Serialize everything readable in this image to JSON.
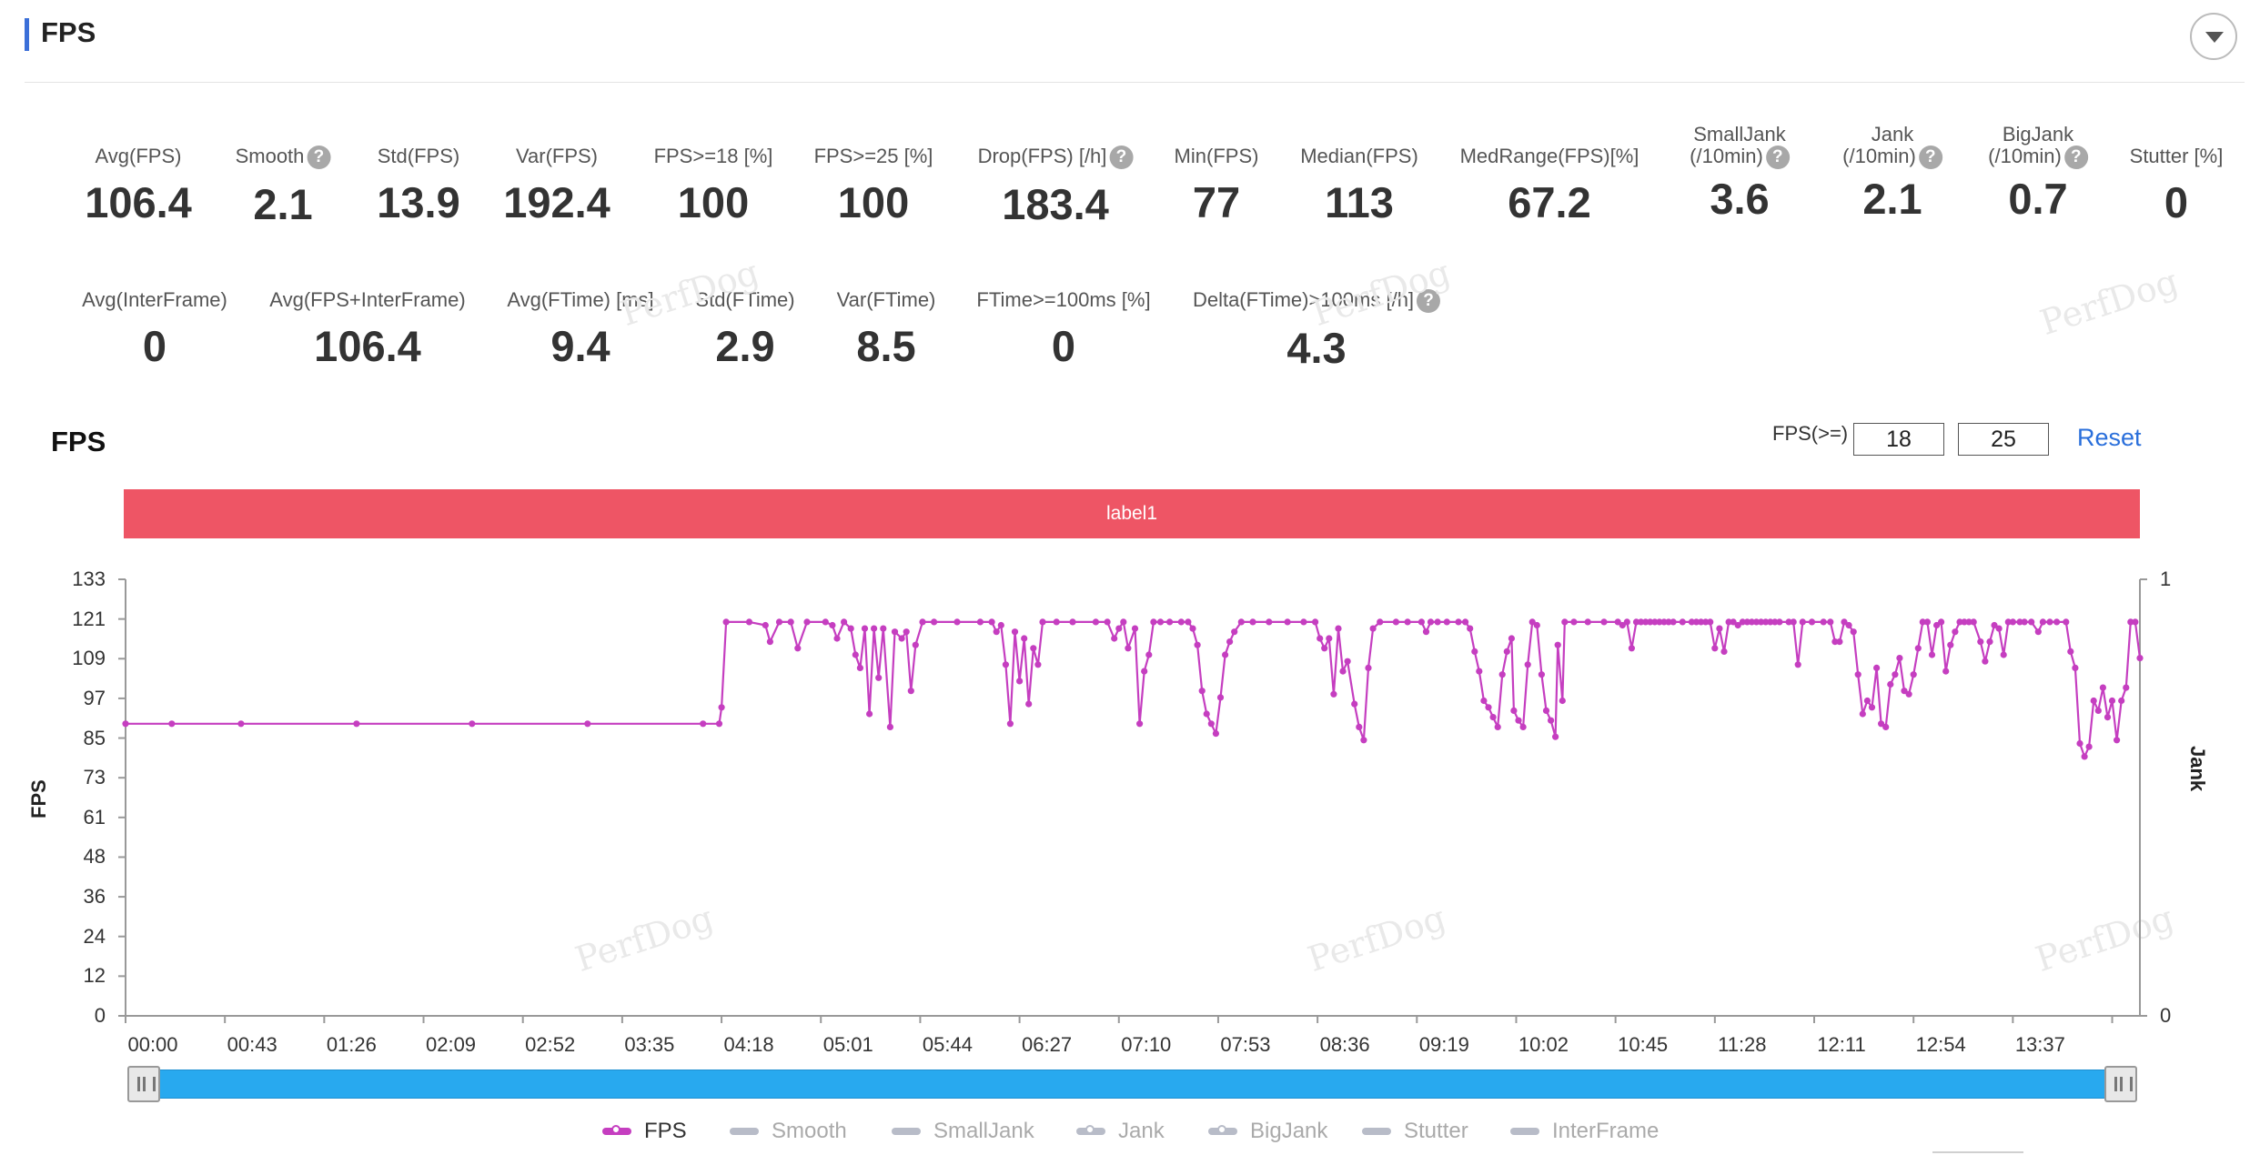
{
  "header": {
    "title": "FPS"
  },
  "metrics_row1": [
    {
      "label": "Avg(FPS)",
      "value": "106.4",
      "help": false
    },
    {
      "label": "Smooth",
      "value": "2.1",
      "help": true
    },
    {
      "label": "Std(FPS)",
      "value": "13.9",
      "help": false
    },
    {
      "label": "Var(FPS)",
      "value": "192.4",
      "help": false
    },
    {
      "label": "FPS>=18 [%]",
      "value": "100",
      "help": false
    },
    {
      "label": "FPS>=25 [%]",
      "value": "100",
      "help": false
    },
    {
      "label": "Drop(FPS) [/h]",
      "value": "183.4",
      "help": true
    },
    {
      "label": "Min(FPS)",
      "value": "77",
      "help": false
    },
    {
      "label": "Median(FPS)",
      "value": "113",
      "help": false
    },
    {
      "label": "MedRange(FPS)[%]",
      "value": "67.2",
      "help": false
    },
    {
      "label": "SmallJank",
      "label2": "(/10min)",
      "value": "3.6",
      "help": true
    },
    {
      "label": "Jank",
      "label2": "(/10min)",
      "value": "2.1",
      "help": true
    },
    {
      "label": "BigJank",
      "label2": "(/10min)",
      "value": "0.7",
      "help": true
    },
    {
      "label": "Stutter [%]",
      "value": "0",
      "help": false
    }
  ],
  "metrics_row2": [
    {
      "label": "Avg(InterFrame)",
      "value": "0",
      "help": false
    },
    {
      "label": "Avg(FPS+InterFrame)",
      "value": "106.4",
      "help": false
    },
    {
      "label": "Avg(FTime) [ms]",
      "value": "9.4",
      "help": false
    },
    {
      "label": "Std(FTime)",
      "value": "2.9",
      "help": false
    },
    {
      "label": "Var(FTime)",
      "value": "8.5",
      "help": false
    },
    {
      "label": "FTime>=100ms [%]",
      "value": "0",
      "help": false
    },
    {
      "label": "Delta(FTime)>100ms [/h]",
      "value": "4.3",
      "help": true
    }
  ],
  "help_glyph": "?",
  "watermark": "PerfDog",
  "chart_panel": {
    "title": "FPS",
    "threshold_label": "FPS(>=)",
    "threshold_low": "18",
    "threshold_high": "25",
    "reset_label": "Reset",
    "band_label": "label1",
    "band_color": "#ee5565"
  },
  "legend": [
    {
      "name": "FPS",
      "color": "#c53ec0",
      "active": true,
      "marker": true
    },
    {
      "name": "Smooth",
      "color": "#b8bcc8",
      "active": false,
      "marker": false
    },
    {
      "name": "SmallJank",
      "color": "#b8bcc8",
      "active": false,
      "marker": false
    },
    {
      "name": "Jank",
      "color": "#b8bcc8",
      "active": false,
      "marker": true
    },
    {
      "name": "BigJank",
      "color": "#b8bcc8",
      "active": false,
      "marker": true
    },
    {
      "name": "Stutter",
      "color": "#b8bcc8",
      "active": false,
      "marker": false
    },
    {
      "name": "InterFrame",
      "color": "#b8bcc8",
      "active": false,
      "marker": false
    }
  ],
  "chart_data": {
    "type": "line",
    "ylabel": "FPS",
    "y2label": "Jank",
    "ylim": [
      0,
      133
    ],
    "y_ticks": [
      "133",
      "121",
      "109",
      "97",
      "85",
      "73",
      "61",
      "48",
      "36",
      "24",
      "12",
      "0"
    ],
    "y2_ticks": [
      "1",
      "0"
    ],
    "x_ticks": [
      "00:00",
      "00:43",
      "01:26",
      "02:09",
      "02:52",
      "03:35",
      "04:18",
      "05:01",
      "05:44",
      "06:27",
      "07:10",
      "07:53",
      "08:36",
      "09:19",
      "10:02",
      "10:45",
      "11:28",
      "12:11",
      "12:54",
      "13:37"
    ],
    "x_span_seconds": 872,
    "series": [
      {
        "name": "FPS",
        "color": "#c53ec0",
        "points": [
          [
            0,
            89
          ],
          [
            20,
            89
          ],
          [
            50,
            89
          ],
          [
            100,
            89
          ],
          [
            150,
            89
          ],
          [
            200,
            89
          ],
          [
            250,
            89
          ],
          [
            257,
            89
          ],
          [
            258,
            94
          ],
          [
            260,
            120
          ],
          [
            270,
            120
          ],
          [
            277,
            119
          ],
          [
            279,
            114
          ],
          [
            283,
            120
          ],
          [
            288,
            120
          ],
          [
            291,
            112
          ],
          [
            295,
            120
          ],
          [
            303,
            120
          ],
          [
            306,
            119
          ],
          [
            308,
            115
          ],
          [
            311,
            120
          ],
          [
            314,
            118
          ],
          [
            316,
            110
          ],
          [
            318,
            106
          ],
          [
            320,
            118
          ],
          [
            322,
            92
          ],
          [
            324,
            118
          ],
          [
            326,
            103
          ],
          [
            328,
            118
          ],
          [
            331,
            88
          ],
          [
            333,
            117
          ],
          [
            336,
            115
          ],
          [
            338,
            117
          ],
          [
            340,
            99
          ],
          [
            342,
            113
          ],
          [
            345,
            120
          ],
          [
            350,
            120
          ],
          [
            360,
            120
          ],
          [
            370,
            120
          ],
          [
            375,
            120
          ],
          [
            377,
            117
          ],
          [
            379,
            119
          ],
          [
            381,
            107
          ],
          [
            383,
            89
          ],
          [
            385,
            117
          ],
          [
            387,
            102
          ],
          [
            389,
            115
          ],
          [
            391,
            95
          ],
          [
            393,
            112
          ],
          [
            395,
            107
          ],
          [
            397,
            120
          ],
          [
            403,
            120
          ],
          [
            410,
            120
          ],
          [
            420,
            120
          ],
          [
            425,
            120
          ],
          [
            428,
            115
          ],
          [
            430,
            118
          ],
          [
            432,
            120
          ],
          [
            434,
            112
          ],
          [
            437,
            118
          ],
          [
            439,
            89
          ],
          [
            441,
            105
          ],
          [
            443,
            110
          ],
          [
            445,
            120
          ],
          [
            448,
            120
          ],
          [
            452,
            120
          ],
          [
            457,
            120
          ],
          [
            460,
            120
          ],
          [
            462,
            118
          ],
          [
            464,
            113
          ],
          [
            466,
            99
          ],
          [
            468,
            92
          ],
          [
            470,
            89
          ],
          [
            472,
            86
          ],
          [
            474,
            97
          ],
          [
            476,
            110
          ],
          [
            478,
            114
          ],
          [
            480,
            117
          ],
          [
            483,
            120
          ],
          [
            488,
            120
          ],
          [
            495,
            120
          ],
          [
            503,
            120
          ],
          [
            510,
            120
          ],
          [
            515,
            120
          ],
          [
            517,
            115
          ],
          [
            519,
            112
          ],
          [
            521,
            115
          ],
          [
            523,
            98
          ],
          [
            525,
            118
          ],
          [
            527,
            105
          ],
          [
            529,
            108
          ],
          [
            532,
            95
          ],
          [
            534,
            88
          ],
          [
            536,
            84
          ],
          [
            538,
            106
          ],
          [
            540,
            118
          ],
          [
            543,
            120
          ],
          [
            550,
            120
          ],
          [
            555,
            120
          ],
          [
            561,
            120
          ],
          [
            563,
            117
          ],
          [
            565,
            120
          ],
          [
            568,
            120
          ],
          [
            572,
            120
          ],
          [
            577,
            120
          ],
          [
            580,
            120
          ],
          [
            582,
            118
          ],
          [
            584,
            111
          ],
          [
            586,
            105
          ],
          [
            588,
            96
          ],
          [
            590,
            94
          ],
          [
            592,
            91
          ],
          [
            594,
            88
          ],
          [
            596,
            104
          ],
          [
            598,
            111
          ],
          [
            600,
            115
          ],
          [
            601,
            93
          ],
          [
            603,
            90
          ],
          [
            605,
            88
          ],
          [
            607,
            107
          ],
          [
            609,
            120
          ],
          [
            611,
            119
          ],
          [
            613,
            104
          ],
          [
            615,
            93
          ],
          [
            617,
            90
          ],
          [
            619,
            85
          ],
          [
            620,
            113
          ],
          [
            622,
            96
          ],
          [
            623,
            120
          ],
          [
            627,
            120
          ],
          [
            633,
            120
          ],
          [
            640,
            120
          ],
          [
            646,
            120
          ],
          [
            648,
            119
          ],
          [
            650,
            120
          ],
          [
            652,
            112
          ],
          [
            654,
            120
          ],
          [
            656,
            120
          ],
          [
            658,
            120
          ],
          [
            660,
            120
          ],
          [
            662,
            120
          ],
          [
            664,
            120
          ],
          [
            666,
            120
          ],
          [
            668,
            120
          ],
          [
            670,
            120
          ],
          [
            674,
            120
          ],
          [
            678,
            120
          ],
          [
            680,
            120
          ],
          [
            682,
            120
          ],
          [
            684,
            120
          ],
          [
            686,
            120
          ],
          [
            688,
            112
          ],
          [
            690,
            118
          ],
          [
            692,
            111
          ],
          [
            694,
            120
          ],
          [
            696,
            120
          ],
          [
            698,
            119
          ],
          [
            700,
            120
          ],
          [
            702,
            120
          ],
          [
            704,
            120
          ],
          [
            706,
            120
          ],
          [
            708,
            120
          ],
          [
            710,
            120
          ],
          [
            712,
            120
          ],
          [
            714,
            120
          ],
          [
            716,
            120
          ],
          [
            720,
            120
          ],
          [
            722,
            120
          ],
          [
            724,
            107
          ],
          [
            726,
            120
          ],
          [
            730,
            120
          ],
          [
            735,
            120
          ],
          [
            738,
            120
          ],
          [
            740,
            114
          ],
          [
            742,
            114
          ],
          [
            744,
            120
          ],
          [
            746,
            119
          ],
          [
            748,
            117
          ],
          [
            750,
            104
          ],
          [
            752,
            92
          ],
          [
            754,
            96
          ],
          [
            756,
            94
          ],
          [
            758,
            106
          ],
          [
            760,
            89
          ],
          [
            762,
            88
          ],
          [
            764,
            101
          ],
          [
            766,
            104
          ],
          [
            768,
            109
          ],
          [
            770,
            99
          ],
          [
            772,
            98
          ],
          [
            774,
            104
          ],
          [
            776,
            112
          ],
          [
            778,
            120
          ],
          [
            780,
            120
          ],
          [
            782,
            110
          ],
          [
            784,
            119
          ],
          [
            786,
            120
          ],
          [
            788,
            105
          ],
          [
            790,
            113
          ],
          [
            792,
            117
          ],
          [
            794,
            120
          ],
          [
            796,
            120
          ],
          [
            798,
            120
          ],
          [
            800,
            120
          ],
          [
            803,
            114
          ],
          [
            805,
            108
          ],
          [
            807,
            114
          ],
          [
            809,
            119
          ],
          [
            811,
            118
          ],
          [
            813,
            110
          ],
          [
            815,
            120
          ],
          [
            817,
            120
          ],
          [
            820,
            120
          ],
          [
            822,
            120
          ],
          [
            825,
            120
          ],
          [
            828,
            117
          ],
          [
            830,
            120
          ],
          [
            833,
            120
          ],
          [
            836,
            120
          ],
          [
            840,
            120
          ],
          [
            842,
            111
          ],
          [
            844,
            106
          ],
          [
            846,
            83
          ],
          [
            848,
            79
          ],
          [
            850,
            82
          ],
          [
            852,
            96
          ],
          [
            854,
            93
          ],
          [
            856,
            100
          ],
          [
            858,
            91
          ],
          [
            860,
            96
          ],
          [
            862,
            84
          ],
          [
            864,
            96
          ],
          [
            866,
            100
          ],
          [
            868,
            120
          ],
          [
            870,
            120
          ],
          [
            872,
            109
          ]
        ]
      }
    ]
  }
}
